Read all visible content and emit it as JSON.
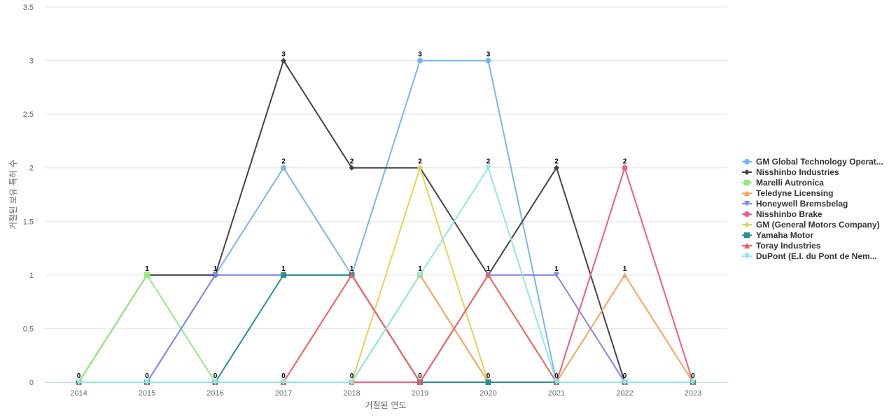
{
  "chart_data": {
    "type": "line",
    "title": "",
    "xlabel": "거절된 연도",
    "ylabel": "거절된 보유 특허 수",
    "x": [
      "2014",
      "2015",
      "2016",
      "2017",
      "2018",
      "2019",
      "2020",
      "2021",
      "2022",
      "2023"
    ],
    "ylim": [
      0,
      3.5
    ],
    "yticks": [
      "0",
      "0.5",
      "1",
      "1.5",
      "2",
      "2.5",
      "3",
      "3.5"
    ],
    "grid": true,
    "legend_position": "right",
    "series": [
      {
        "name": "GM Global Technology Operat...",
        "color": "#7cb5ec",
        "marker": "circle",
        "values": [
          0,
          0,
          1,
          2,
          1,
          3,
          3,
          0,
          0,
          0
        ]
      },
      {
        "name": "Nisshinbo Industries",
        "color": "#434348",
        "marker": "diamond",
        "values": [
          0,
          1,
          1,
          3,
          2,
          2,
          1,
          2,
          0,
          0
        ]
      },
      {
        "name": "Marelli Autronica",
        "color": "#90ed7d",
        "marker": "square",
        "values": [
          0,
          1,
          0,
          0,
          0,
          1,
          0,
          0,
          0,
          0
        ]
      },
      {
        "name": "Teledyne Licensing",
        "color": "#f7a35c",
        "marker": "triangle",
        "values": [
          0,
          0,
          0,
          0,
          0,
          1,
          0,
          0,
          1,
          0
        ]
      },
      {
        "name": "Honeywell Bremsbelag",
        "color": "#8085e9",
        "marker": "triangle-down",
        "values": [
          0,
          0,
          1,
          1,
          1,
          0,
          1,
          1,
          0,
          0
        ]
      },
      {
        "name": "Nisshinbo Brake",
        "color": "#f15c80",
        "marker": "circle",
        "values": [
          0,
          0,
          0,
          0,
          0,
          0,
          0,
          0,
          2,
          0
        ]
      },
      {
        "name": "GM (General Motors Company)",
        "color": "#e4d354",
        "marker": "diamond",
        "values": [
          0,
          0,
          0,
          0,
          0,
          2,
          0,
          0,
          0,
          0
        ]
      },
      {
        "name": "Yamaha Motor",
        "color": "#2b908f",
        "marker": "square",
        "values": [
          0,
          0,
          0,
          1,
          1,
          0,
          0,
          0,
          0,
          0
        ]
      },
      {
        "name": "Toray Industries",
        "color": "#f45b5b",
        "marker": "triangle",
        "values": [
          0,
          0,
          0,
          0,
          1,
          0,
          1,
          0,
          0,
          0
        ]
      },
      {
        "name": "DuPont (E.I. du Pont de Nem...",
        "color": "#91e8e1",
        "marker": "triangle-down",
        "values": [
          0,
          0,
          0,
          0,
          0,
          1,
          2,
          0,
          0,
          0
        ]
      }
    ],
    "point_labels": [
      {
        "x": "2014",
        "text": "0"
      },
      {
        "x": "2015",
        "text": "1"
      },
      {
        "x": "2015",
        "text": "0"
      },
      {
        "x": "2016",
        "text": "1"
      },
      {
        "x": "2016",
        "text": "0"
      },
      {
        "x": "2017",
        "text": "3"
      },
      {
        "x": "2017",
        "text": "2"
      },
      {
        "x": "2017",
        "text": "1"
      },
      {
        "x": "2017",
        "text": "0"
      },
      {
        "x": "2018",
        "text": "2"
      },
      {
        "x": "2018",
        "text": "1"
      },
      {
        "x": "2018",
        "text": "0"
      },
      {
        "x": "2019",
        "text": "3"
      },
      {
        "x": "2019",
        "text": "2"
      },
      {
        "x": "2019",
        "text": "1"
      },
      {
        "x": "2019",
        "text": "0"
      },
      {
        "x": "2020",
        "text": "3"
      },
      {
        "x": "2020",
        "text": "2"
      },
      {
        "x": "2020",
        "text": "1"
      },
      {
        "x": "2020",
        "text": "0"
      },
      {
        "x": "2021",
        "text": "2"
      },
      {
        "x": "2021",
        "text": "1"
      },
      {
        "x": "2021",
        "text": "0"
      },
      {
        "x": "2022",
        "text": "2"
      },
      {
        "x": "2022",
        "text": "1"
      },
      {
        "x": "2022",
        "text": "0"
      },
      {
        "x": "2023",
        "text": "0"
      }
    ]
  }
}
